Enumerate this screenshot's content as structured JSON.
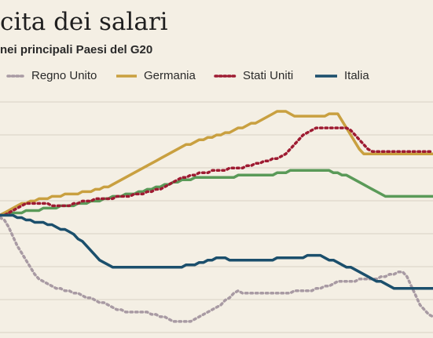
{
  "chart_data": {
    "type": "line",
    "title": "cita dei salari",
    "subtitle": "nei principali Paesi del G20",
    "x": [
      0,
      1,
      2,
      3,
      4,
      5,
      6,
      7,
      8,
      9,
      10,
      11,
      12,
      13,
      14,
      15,
      16,
      17,
      18,
      19,
      20,
      21,
      22,
      23,
      24,
      25,
      26,
      27,
      28,
      29,
      30,
      31,
      32,
      33,
      34,
      35,
      36,
      37,
      38,
      39,
      40,
      41,
      42,
      43,
      44,
      45,
      46,
      47,
      48,
      49,
      50,
      51,
      52,
      53,
      54,
      55,
      56,
      57,
      58,
      59,
      60,
      61,
      62,
      63,
      64,
      65,
      66,
      67,
      68,
      69,
      70,
      71,
      72,
      73,
      74,
      75,
      76,
      77,
      78,
      79,
      80,
      81,
      82,
      83,
      84,
      85,
      86,
      87,
      88,
      89,
      90,
      91,
      92,
      93,
      94,
      95,
      96,
      97,
      98,
      99,
      100
    ],
    "ylim": [
      0,
      100
    ],
    "grid": true,
    "legend": "top",
    "series": [
      {
        "name": "Regno Unito",
        "color": "#a89aa3",
        "style": "dotted",
        "values": [
          51,
          50,
          47,
          43,
          39,
          36,
          33,
          30,
          27,
          25,
          24,
          23,
          22,
          21,
          21,
          20,
          20,
          19,
          19,
          18,
          17,
          17,
          16,
          15,
          15,
          14,
          13,
          12,
          12,
          11,
          11,
          11,
          11,
          11,
          11,
          10,
          10,
          9,
          9,
          8,
          7,
          7,
          7,
          7,
          7,
          8,
          9,
          10,
          11,
          12,
          13,
          14,
          16,
          17,
          19,
          20,
          19,
          19,
          19,
          19,
          19,
          19,
          19,
          19,
          19,
          19,
          19,
          19,
          20,
          20,
          20,
          20,
          20,
          21,
          21,
          22,
          22,
          23,
          24,
          24,
          24,
          24,
          24,
          25,
          25,
          25,
          25,
          25,
          26,
          26,
          27,
          27,
          28,
          28,
          26,
          22,
          18,
          14,
          12,
          10,
          9
        ]
      },
      {
        "name": "Germania",
        "color": "#c9a040",
        "style": "solid",
        "values": [
          52,
          53,
          54,
          55,
          56,
          57,
          57,
          58,
          58,
          59,
          59,
          59,
          60,
          60,
          60,
          61,
          61,
          61,
          61,
          62,
          62,
          62,
          63,
          63,
          64,
          64,
          65,
          66,
          67,
          68,
          69,
          70,
          71,
          72,
          73,
          74,
          75,
          76,
          77,
          78,
          79,
          80,
          81,
          82,
          82,
          83,
          84,
          84,
          85,
          85,
          86,
          86,
          87,
          87,
          88,
          89,
          89,
          90,
          91,
          91,
          92,
          93,
          94,
          95,
          96,
          96,
          96,
          95,
          94,
          94,
          94,
          94,
          94,
          94,
          94,
          94,
          95,
          95,
          95,
          92,
          89,
          86,
          83,
          80,
          78,
          78,
          78,
          78,
          78,
          78,
          78,
          78,
          78,
          78,
          78,
          78,
          78,
          78,
          78,
          78,
          78
        ]
      },
      {
        "name": "Stati Uniti",
        "color": "#9e1b32",
        "style": "dotted",
        "values": [
          52,
          52,
          53,
          54,
          55,
          56,
          57,
          57,
          57,
          57,
          57,
          57,
          56,
          56,
          56,
          56,
          56,
          57,
          57,
          58,
          58,
          58,
          59,
          59,
          59,
          59,
          59,
          60,
          60,
          60,
          60,
          61,
          61,
          61,
          62,
          62,
          63,
          63,
          64,
          65,
          66,
          67,
          68,
          68,
          69,
          69,
          70,
          70,
          70,
          71,
          71,
          71,
          71,
          72,
          72,
          72,
          72,
          73,
          73,
          74,
          74,
          75,
          75,
          76,
          76,
          77,
          78,
          80,
          82,
          84,
          86,
          87,
          88,
          89,
          89,
          89,
          89,
          89,
          89,
          89,
          89,
          88,
          86,
          84,
          82,
          80,
          79,
          79,
          79,
          79,
          79,
          79,
          79,
          79,
          79,
          79,
          79,
          79,
          79,
          79,
          79
        ]
      },
      {
        "name": "Italia",
        "color": "#1b4f6c",
        "style": "solid",
        "values": [
          52,
          52,
          52,
          52,
          51,
          51,
          50,
          50,
          49,
          49,
          49,
          48,
          48,
          47,
          46,
          46,
          45,
          44,
          42,
          41,
          39,
          37,
          35,
          33,
          32,
          31,
          30,
          30,
          30,
          30,
          30,
          30,
          30,
          30,
          30,
          30,
          30,
          30,
          30,
          30,
          30,
          30,
          30,
          31,
          31,
          31,
          32,
          32,
          33,
          33,
          34,
          34,
          34,
          33,
          33,
          33,
          33,
          33,
          33,
          33,
          33,
          33,
          33,
          33,
          34,
          34,
          34,
          34,
          34,
          34,
          34,
          35,
          35,
          35,
          35,
          34,
          33,
          33,
          32,
          31,
          30,
          30,
          29,
          28,
          27,
          26,
          25,
          24,
          24,
          23,
          22,
          21,
          21,
          21,
          21,
          21,
          21,
          21,
          21,
          21,
          21
        ]
      },
      {
        "name": "",
        "color": "#5a9a58",
        "style": "solid",
        "values": [
          52,
          53,
          53,
          53,
          53,
          53,
          54,
          54,
          54,
          54,
          55,
          55,
          55,
          55,
          56,
          56,
          56,
          56,
          57,
          57,
          57,
          58,
          58,
          58,
          59,
          59,
          60,
          60,
          60,
          61,
          61,
          61,
          62,
          62,
          63,
          63,
          64,
          64,
          65,
          65,
          66,
          66,
          67,
          67,
          67,
          68,
          68,
          68,
          68,
          68,
          68,
          68,
          68,
          68,
          68,
          69,
          69,
          69,
          69,
          69,
          69,
          69,
          69,
          69,
          70,
          70,
          70,
          71,
          71,
          71,
          71,
          71,
          71,
          71,
          71,
          71,
          71,
          70,
          70,
          69,
          69,
          68,
          67,
          66,
          65,
          64,
          63,
          62,
          61,
          60,
          60,
          60,
          60,
          60,
          60,
          60,
          60,
          60,
          60,
          60,
          60
        ]
      }
    ]
  }
}
